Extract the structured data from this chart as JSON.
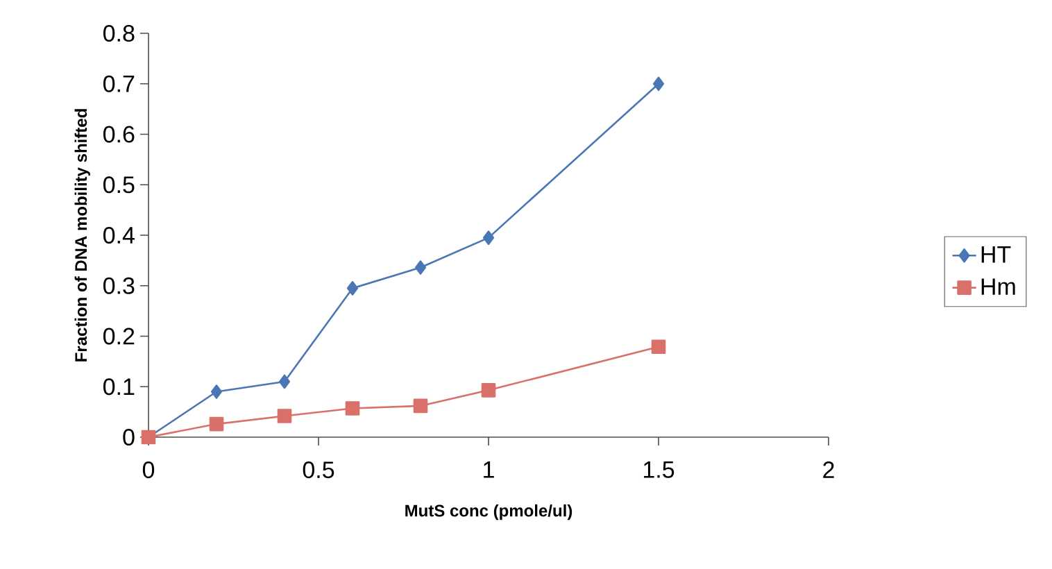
{
  "chart_data": {
    "type": "line",
    "xlabel": "MutS conc (pmole/ul)",
    "ylabel": "Fraction of DNA mobility shifted",
    "xlim": [
      0,
      2
    ],
    "xticks": [
      0,
      0.5,
      1,
      1.5,
      2
    ],
    "ylim": [
      0,
      0.8
    ],
    "yticks": [
      0,
      0.1,
      0.2,
      0.3,
      0.4,
      0.5,
      0.6,
      0.7,
      0.8
    ],
    "legend": "right",
    "series": [
      {
        "name": "HT",
        "color": "#4a76b4",
        "marker": "diamond",
        "x": [
          0,
          0.2,
          0.4,
          0.6,
          0.8,
          1,
          1.5
        ],
        "values": [
          0,
          0.09,
          0.11,
          0.295,
          0.336,
          0.395,
          0.7
        ]
      },
      {
        "name": "Hm",
        "color": "#d9706a",
        "marker": "square",
        "x": [
          0,
          0.2,
          0.4,
          0.6,
          0.8,
          1,
          1.5
        ],
        "values": [
          0,
          0.026,
          0.042,
          0.057,
          0.062,
          0.093,
          0.179
        ]
      }
    ]
  }
}
